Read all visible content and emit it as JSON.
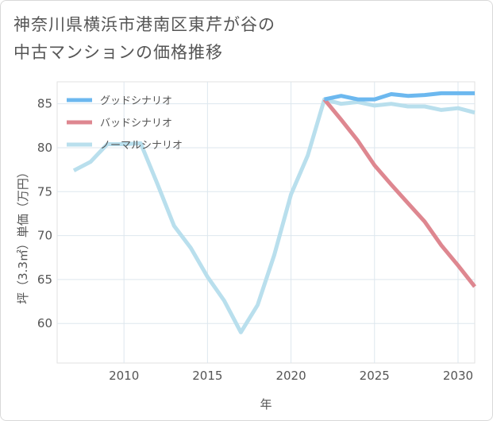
{
  "title_line1": "神奈川県横浜市港南区東芹が谷の",
  "title_line2": "中古マンションの価格推移",
  "chart_data": {
    "type": "line",
    "title": "神奈川県横浜市港南区東芹が谷の中古マンションの価格推移",
    "xlabel": "年",
    "ylabel": "坪（3.3㎡）単価（万円）",
    "xlim": [
      2006,
      2031
    ],
    "ylim": [
      55.5,
      87.5
    ],
    "xticks": [
      2010,
      2015,
      2020,
      2025,
      2030
    ],
    "yticks": [
      60,
      65,
      70,
      75,
      80,
      85
    ],
    "legend_position": "top-left",
    "series": [
      {
        "name": "グッドシナリオ",
        "color": "#6cb8ef",
        "x": [
          2022,
          2023,
          2024,
          2025,
          2026,
          2027,
          2028,
          2029,
          2030,
          2031
        ],
        "y": [
          85.5,
          85.9,
          85.5,
          85.5,
          86.1,
          85.9,
          86.0,
          86.2,
          86.2,
          86.2
        ]
      },
      {
        "name": "バッドシナリオ",
        "color": "#de8790",
        "x": [
          2022,
          2023,
          2024,
          2025,
          2026,
          2027,
          2028,
          2029,
          2030,
          2031
        ],
        "y": [
          85.5,
          83.2,
          80.8,
          78.0,
          75.8,
          73.7,
          71.6,
          68.9,
          66.6,
          64.2
        ]
      },
      {
        "name": "ノーマルシナリオ",
        "color": "#b9dfed",
        "x": [
          2007,
          2008,
          2009,
          2010,
          2011,
          2012,
          2013,
          2014,
          2015,
          2016,
          2017,
          2018,
          2019,
          2020,
          2021,
          2022,
          2023,
          2024,
          2025,
          2026,
          2027,
          2028,
          2029,
          2030,
          2031
        ],
        "y": [
          77.4,
          78.4,
          80.4,
          80.4,
          80.5,
          75.9,
          71.1,
          68.6,
          65.3,
          62.6,
          59.0,
          62.1,
          67.8,
          74.7,
          79.1,
          85.5,
          85.0,
          85.2,
          84.8,
          85.0,
          84.7,
          84.7,
          84.3,
          84.5,
          84.0
        ]
      }
    ]
  }
}
